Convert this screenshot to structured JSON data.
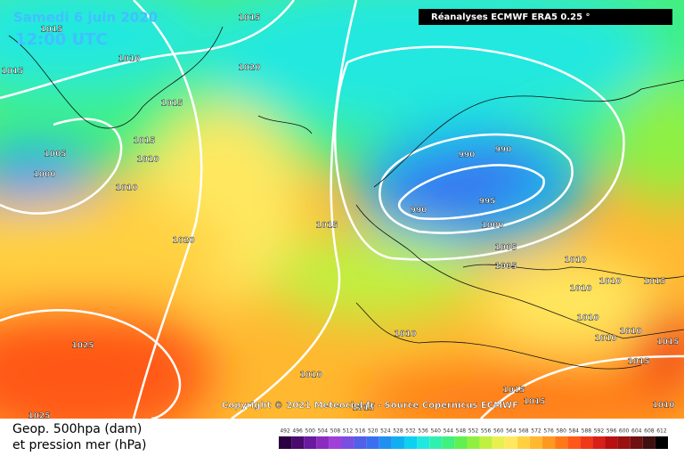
{
  "header": {
    "title": "Samedi 6 juin 2020",
    "time": "12:00 UTC",
    "source": "Réanalyses ECMWF ERA5 0.25 °"
  },
  "copyright": "Copyright © 2021 Meteociel.fr - Source Copernicus ECMWF",
  "legend": {
    "line1": "Geop. 500hpa (dam)",
    "line2": "et pression mer (hPa)",
    "scale": [
      {
        "value": 492,
        "color": "#2b0040"
      },
      {
        "value": 496,
        "color": "#4a0a6e"
      },
      {
        "value": 500,
        "color": "#6a1a9e"
      },
      {
        "value": 504,
        "color": "#8a2cc0"
      },
      {
        "value": 508,
        "color": "#a040d8"
      },
      {
        "value": 512,
        "color": "#7a50e0"
      },
      {
        "value": 516,
        "color": "#5060e8"
      },
      {
        "value": 520,
        "color": "#3a70f0"
      },
      {
        "value": 524,
        "color": "#2090f0"
      },
      {
        "value": 528,
        "color": "#10b0f0"
      },
      {
        "value": 532,
        "color": "#10d0f0"
      },
      {
        "value": 536,
        "color": "#20e8e0"
      },
      {
        "value": 540,
        "color": "#30f0b0"
      },
      {
        "value": 544,
        "color": "#40f080"
      },
      {
        "value": 548,
        "color": "#60f050"
      },
      {
        "value": 552,
        "color": "#90f040"
      },
      {
        "value": 556,
        "color": "#c0f040"
      },
      {
        "value": 560,
        "color": "#e8f050"
      },
      {
        "value": 564,
        "color": "#ffe860"
      },
      {
        "value": 568,
        "color": "#ffd040"
      },
      {
        "value": 572,
        "color": "#ffb830"
      },
      {
        "value": 576,
        "color": "#ff9820"
      },
      {
        "value": 580,
        "color": "#ff7818"
      },
      {
        "value": 584,
        "color": "#ff5818"
      },
      {
        "value": 588,
        "color": "#f03818"
      },
      {
        "value": 592,
        "color": "#d82018"
      },
      {
        "value": 596,
        "color": "#b81010"
      },
      {
        "value": 600,
        "color": "#981010"
      },
      {
        "value": 604,
        "color": "#701010"
      },
      {
        "value": 608,
        "color": "#401010"
      },
      {
        "value": 612,
        "color": "#000000"
      }
    ]
  },
  "isobar_labels": [
    "1015",
    "1015",
    "1010",
    "1015",
    "1020",
    "1015",
    "1015",
    "1010",
    "1005",
    "1000",
    "1010",
    "1020",
    "1015",
    "990",
    "990",
    "990",
    "995",
    "1000",
    "1005",
    "1005",
    "1010",
    "1010",
    "1010",
    "1015",
    "1010",
    "1010",
    "1010",
    "1010",
    "1015",
    "1025",
    "1010",
    "1015",
    "1015",
    "1015",
    "1010",
    "1025",
    "1015"
  ]
}
